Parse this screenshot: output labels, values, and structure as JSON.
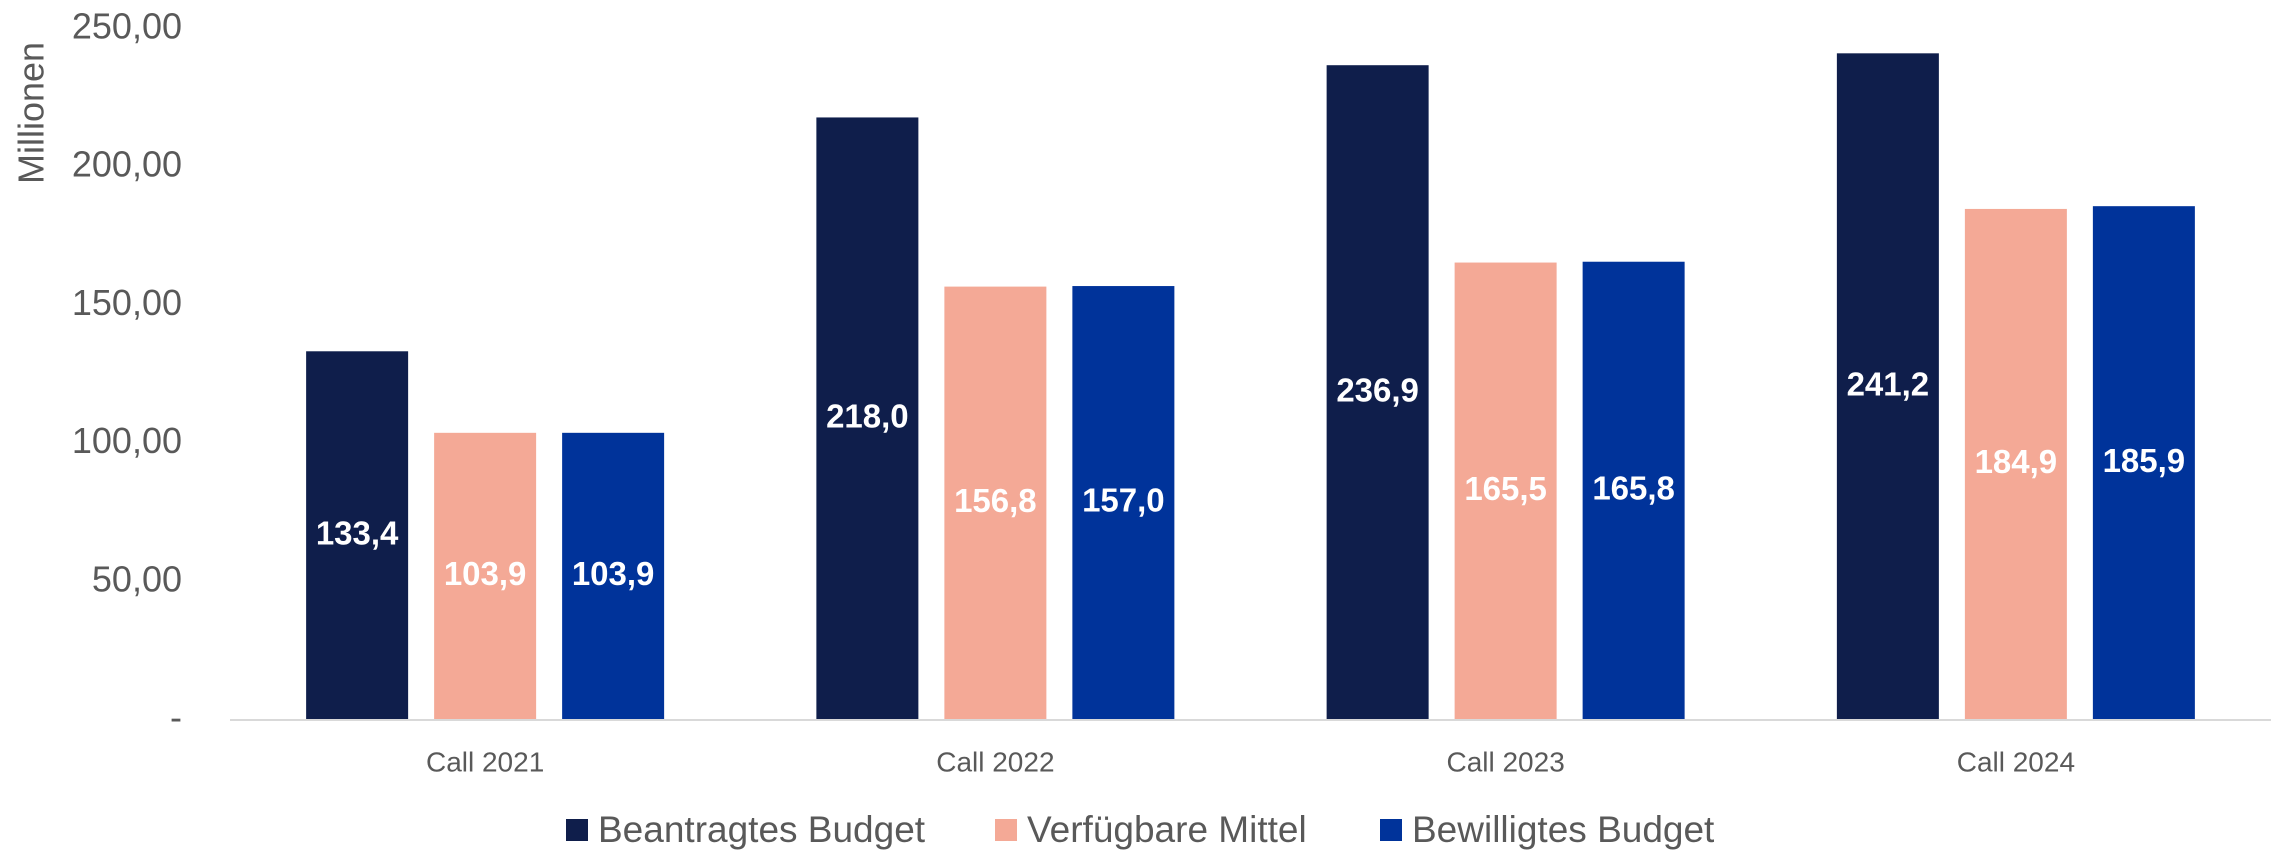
{
  "chart_data": {
    "type": "bar",
    "y_label": "Millionen",
    "categories": [
      "Call 2021",
      "Call 2022",
      "Call 2023",
      "Call 2024"
    ],
    "series": [
      {
        "name": "Beantragtes Budget",
        "color": "#0f1e4b",
        "values": [
          133.4,
          218.0,
          236.9,
          241.2
        ],
        "value_labels": [
          "133,4",
          "218,0",
          "236,9",
          "241,2"
        ]
      },
      {
        "name": "Verfügbare Mittel",
        "color": "#f4a996",
        "values": [
          103.9,
          156.8,
          165.5,
          184.9
        ],
        "value_labels": [
          "103,9",
          "156,8",
          "165,5",
          "184,9"
        ]
      },
      {
        "name": "Bewilligtes Budget",
        "color": "#00339a",
        "values": [
          103.9,
          157.0,
          165.8,
          185.9
        ],
        "value_labels": [
          "103,9",
          "157,0",
          "165,8",
          "185,9"
        ]
      }
    ],
    "ylim": [
      0,
      250
    ],
    "yticks": [
      {
        "value": 0,
        "label": "-"
      },
      {
        "value": 50,
        "label": "50,00"
      },
      {
        "value": 100,
        "label": "100,00"
      },
      {
        "value": 150,
        "label": "150,00"
      },
      {
        "value": 200,
        "label": "200,00"
      },
      {
        "value": 250,
        "label": "250,00"
      }
    ],
    "legend": "bottom"
  }
}
